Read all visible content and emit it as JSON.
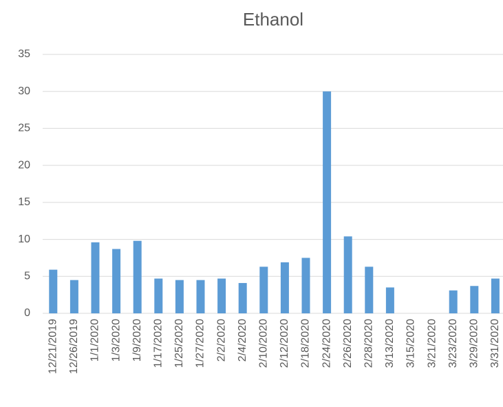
{
  "chart_data": {
    "type": "bar",
    "title": "Ethanol",
    "categories": [
      "12/21/2019",
      "12/26/2019",
      "1/1/2020",
      "1/3/2020",
      "1/9/2020",
      "1/17/2020",
      "1/25/2020",
      "1/27/2020",
      "2/2/2020",
      "2/4/2020",
      "2/10/2020",
      "2/12/2020",
      "2/18/2020",
      "2/24/2020",
      "2/26/2020",
      "2/28/2020",
      "3/13/2020",
      "3/15/2020",
      "3/21/2020",
      "3/23/2020",
      "3/29/2020",
      "3/31/2020"
    ],
    "values": [
      5.9,
      4.5,
      9.6,
      8.7,
      9.8,
      4.7,
      4.5,
      4.5,
      4.7,
      4.1,
      6.3,
      6.9,
      7.5,
      30,
      10.4,
      6.3,
      3.5,
      0,
      0,
      3.1,
      3.7,
      4.7
    ],
    "color": "#5b9bd5",
    "ylim": [
      0,
      35
    ],
    "yticks": [
      0,
      5,
      10,
      15,
      20,
      25,
      30,
      35
    ],
    "grid": true
  }
}
